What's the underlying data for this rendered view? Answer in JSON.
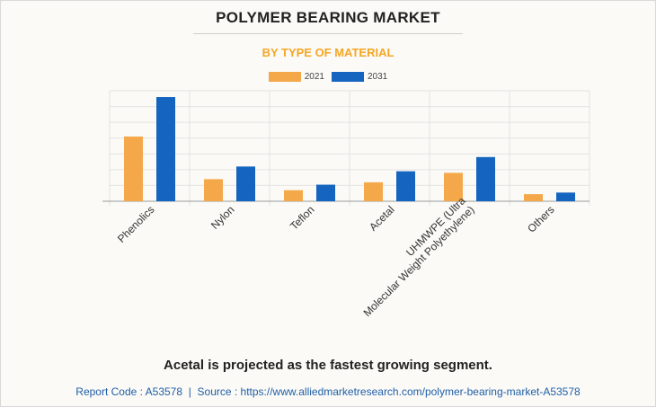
{
  "title": "POLYMER BEARING MARKET",
  "subtitle": "BY TYPE OF MATERIAL",
  "footnote": "Acetal is projected as the fastest growing segment.",
  "source": {
    "report_code_label": "Report Code : A53578",
    "separator": "|",
    "source_text": "Source : https://www.alliedmarketresearch.com/polymer-bearing-market-A53578"
  },
  "colors": {
    "subtitle": "#f5a623",
    "series_2021": "#f4a84a",
    "series_2031": "#1565c0",
    "grid": "#e3e3e3"
  },
  "chart_data": {
    "type": "bar",
    "categories": [
      "Phenolics",
      "Nylon",
      "Teflon",
      "Acetal",
      "UHMWPE (Ultra\nMolecular Weight Polyethylene)",
      "Others"
    ],
    "series": [
      {
        "name": "2021",
        "values": [
          41,
          14,
          7,
          12,
          18,
          4.5
        ]
      },
      {
        "name": "2031",
        "values": [
          66,
          22,
          10.5,
          19,
          28,
          5.5
        ]
      }
    ],
    "ylim": [
      0,
      70
    ],
    "y_ticks_labeled": false,
    "grid": true,
    "legend_position": "top-center"
  }
}
